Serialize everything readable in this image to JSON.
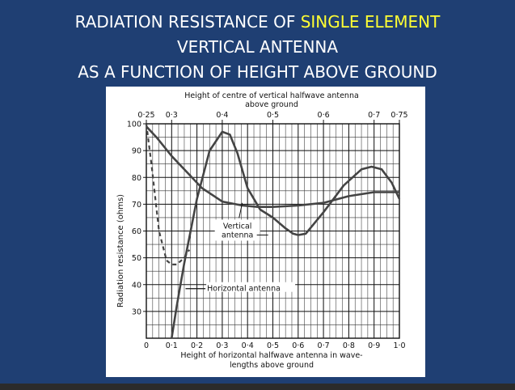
{
  "slide": {
    "title_line1_prefix": "RADIATION RESISTANCE OF ",
    "title_line1_highlight": "SINGLE ELEMENT",
    "title_line2": "VERTICAL ANTENNA",
    "title_line3": "AS A FUNCTION OF HEIGHT ABOVE GROUND",
    "highlight_color": "#ffff33",
    "background_color": "#1f3f73"
  },
  "chart_data": {
    "type": "line",
    "top_axis_title_line1": "Height of centre of vertical halfwave antenna",
    "top_axis_title_line2": "above ground",
    "top_ticks": [
      "0·25",
      "0·3",
      "0·4",
      "0·5",
      "0·6",
      "0·7",
      "0·75"
    ],
    "top_tick_values": [
      0.25,
      0.3,
      0.4,
      0.5,
      0.6,
      0.7,
      0.75
    ],
    "xlabel_line1": "Height of horizontal halfwave antenna in wave-",
    "xlabel_line2": "lengths above ground",
    "ylabel": "Radiation resistance (ohms)",
    "x_ticks": [
      "0",
      "0·1",
      "0·2",
      "0·3",
      "0·4",
      "0·5",
      "0·6",
      "0·7",
      "0·8",
      "0·9",
      "1·0"
    ],
    "x_tick_values": [
      0,
      0.1,
      0.2,
      0.3,
      0.4,
      0.5,
      0.6,
      0.7,
      0.8,
      0.9,
      1.0
    ],
    "y_ticks": [
      "30",
      "40",
      "50",
      "60",
      "70",
      "80",
      "90",
      "100"
    ],
    "y_tick_values": [
      30,
      40,
      50,
      60,
      70,
      80,
      90,
      100
    ],
    "xlim": [
      0,
      1.0
    ],
    "ylim": [
      20,
      100
    ],
    "top_xlim": [
      0.25,
      0.75
    ],
    "grid": true,
    "annotations": {
      "vertical_label_line1": "Vertical",
      "vertical_label_line2": "antenna",
      "horizontal_label": "Horizontal antenna"
    },
    "series": [
      {
        "name": "Vertical antenna",
        "axis": "top",
        "x": [
          0.25,
          0.27,
          0.3,
          0.33,
          0.36,
          0.4,
          0.44,
          0.47,
          0.5,
          0.55,
          0.6,
          0.65,
          0.7,
          0.75
        ],
        "y": [
          99,
          95,
          88,
          82,
          76,
          71,
          69.5,
          69,
          69,
          69.5,
          70.5,
          73,
          74.5,
          74.5
        ]
      },
      {
        "name": "Horizontal antenna",
        "axis": "bottom",
        "solid": {
          "x": [
            0.1,
            0.12,
            0.15,
            0.2,
            0.25,
            0.3,
            0.33,
            0.36,
            0.4,
            0.45,
            0.5,
            0.55,
            0.58,
            0.6,
            0.63,
            0.7,
            0.78,
            0.85,
            0.89,
            0.93,
            0.97,
            1.0
          ],
          "y": [
            20,
            32,
            48,
            72,
            90,
            97,
            96,
            89,
            76,
            68,
            65,
            61,
            59,
            58.5,
            59,
            67,
            77,
            83,
            84,
            83,
            78,
            72
          ]
        },
        "dashed": {
          "x": [
            0.0,
            0.02,
            0.05,
            0.08,
            0.1,
            0.12,
            0.15,
            0.17
          ],
          "y": [
            100,
            85,
            60,
            49,
            47.5,
            47.5,
            50,
            53
          ]
        }
      }
    ]
  }
}
